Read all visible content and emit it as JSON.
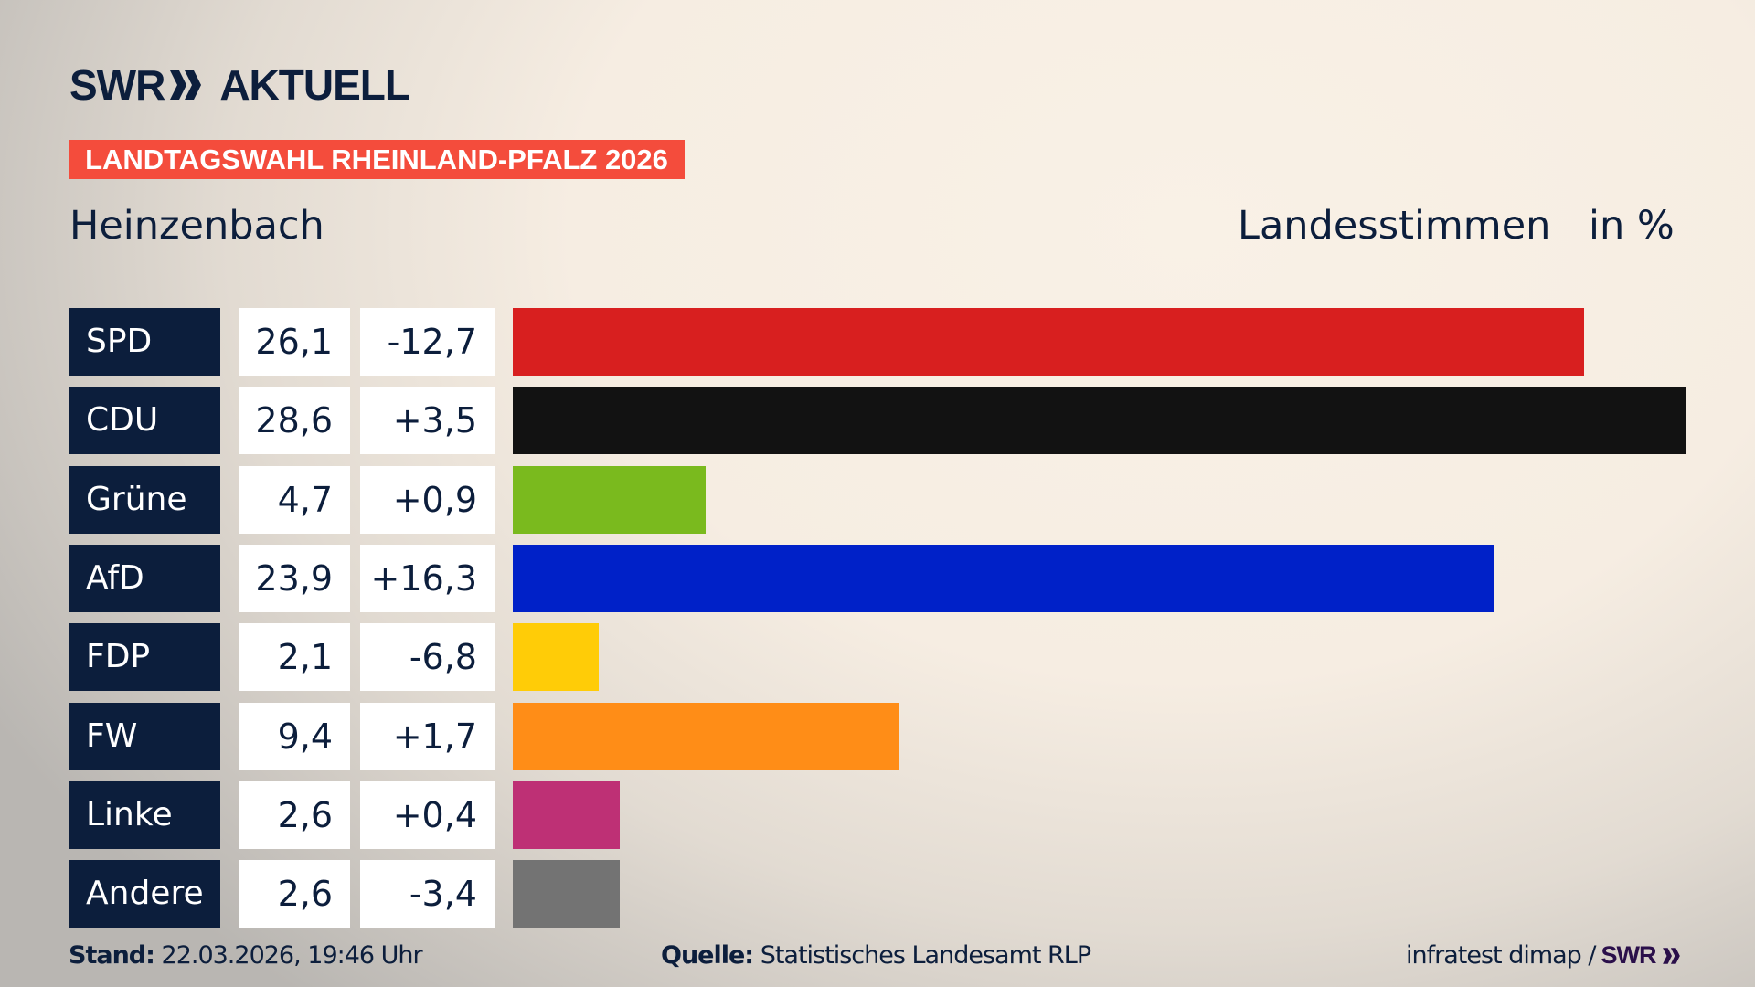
{
  "brand": {
    "logo_text": "SWR",
    "product": "AKTUELL"
  },
  "banner": "LANDTAGSWAHL RHEINLAND-PFALZ 2026",
  "region": "Heinzenbach",
  "metric": "Landesstimmen",
  "unit": "in %",
  "chart_data": {
    "type": "bar",
    "orientation": "horizontal",
    "title": "Landtagswahl Rheinland-Pfalz 2026 – Heinzenbach – Landesstimmen in %",
    "categories": [
      "SPD",
      "CDU",
      "Grüne",
      "AfD",
      "FDP",
      "FW",
      "Linke",
      "Andere"
    ],
    "values": [
      26.1,
      28.6,
      4.7,
      23.9,
      2.1,
      9.4,
      2.6,
      2.6
    ],
    "value_labels": [
      "26,1",
      "28,6",
      "4,7",
      "23,9",
      "2,1",
      "9,4",
      "2,6",
      "2,6"
    ],
    "diff_labels": [
      "-12,7",
      "+3,5",
      "+0,9",
      "+16,3",
      "-6,8",
      "+1,7",
      "+0,4",
      "-3,4"
    ],
    "diffs": [
      -12.7,
      3.5,
      0.9,
      16.3,
      -6.8,
      1.7,
      0.4,
      -3.4
    ],
    "colors": [
      "#d81f1f",
      "#121212",
      "#7aba1e",
      "#0021c8",
      "#ffcc07",
      "#ff8d17",
      "#be3075",
      "#737373"
    ],
    "xlim": [
      0,
      28.6
    ],
    "grid": false
  },
  "footer": {
    "stand_label": "Stand:",
    "stand_value": "22.03.2026, 19:46 Uhr",
    "source_label": "Quelle:",
    "source_value": "Statistisches Landesamt RLP",
    "credit": "infratest dimap /",
    "credit_logo": "SWR"
  }
}
